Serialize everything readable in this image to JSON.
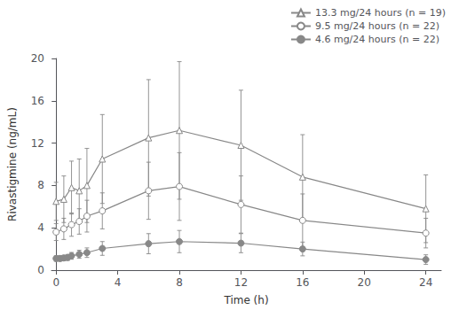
{
  "chart_data": {
    "type": "line",
    "xlabel": "Time (h)",
    "ylabel": "Rivastigmine (ng/mL)",
    "xlim": [
      -0.3,
      25
    ],
    "xticks": [
      0,
      4,
      8,
      12,
      16,
      20,
      24
    ],
    "ylim": [
      0,
      20
    ],
    "yticks": [
      0,
      4,
      8,
      12,
      16,
      20
    ],
    "grid": false,
    "legend": "upper right",
    "series": [
      {
        "name": "13.3 mg/24 hours (n = 19)",
        "color": "#888888",
        "marker": "triangle-open",
        "x": [
          0,
          0.5,
          1.0,
          1.5,
          2.0,
          3.0,
          6.0,
          8.0,
          12.0,
          16.0,
          24.0
        ],
        "values": [
          6.5,
          6.7,
          7.8,
          7.5,
          8.0,
          10.5,
          12.5,
          13.2,
          11.8,
          8.8,
          5.8
        ],
        "errors": [
          1.8,
          2.2,
          2.5,
          3.0,
          3.5,
          4.2,
          5.5,
          6.5,
          5.2,
          4.0,
          3.2
        ]
      },
      {
        "name": "9.5 mg/24 hours (n = 22)",
        "color": "#888888",
        "marker": "circle-open",
        "x": [
          0,
          0.5,
          1.0,
          1.5,
          2.0,
          3.0,
          6.0,
          8.0,
          12.0,
          16.0,
          24.0
        ],
        "values": [
          3.6,
          3.9,
          4.3,
          4.6,
          5.1,
          5.6,
          7.5,
          7.9,
          6.2,
          4.7,
          3.5
        ],
        "errors": [
          0.8,
          1.0,
          1.1,
          1.2,
          1.5,
          1.7,
          2.7,
          3.2,
          2.7,
          2.5,
          1.4
        ]
      },
      {
        "name": "4.6 mg/24 hours (n = 22)",
        "color": "#888888",
        "marker": "circle",
        "x": [
          0,
          0.25,
          0.5,
          0.75,
          1.0,
          1.5,
          2.0,
          3.0,
          6.0,
          8.0,
          12.0,
          16.0,
          24.0
        ],
        "values": [
          1.1,
          1.1,
          1.15,
          1.2,
          1.35,
          1.5,
          1.65,
          2.05,
          2.5,
          2.7,
          2.55,
          2.0,
          1.0
        ],
        "errors": [
          0.25,
          0.25,
          0.25,
          0.28,
          0.32,
          0.38,
          0.45,
          0.65,
          0.95,
          1.05,
          0.9,
          0.65,
          0.45
        ]
      }
    ]
  }
}
